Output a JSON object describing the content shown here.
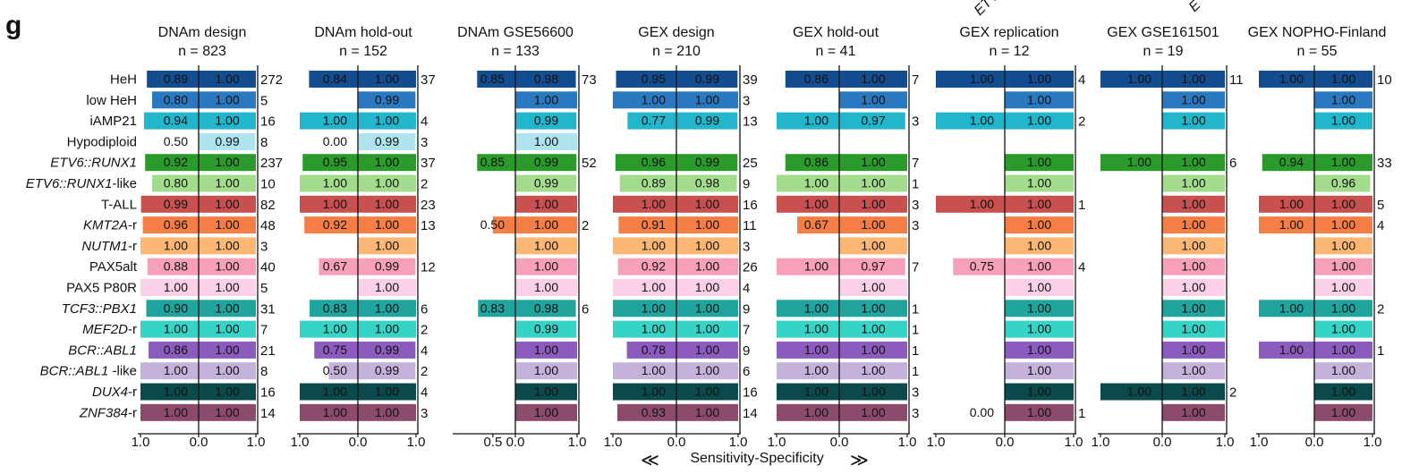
{
  "figure": {
    "panel_label": "g",
    "xlabel": "Sensitivity-Specificity",
    "arrow_left": "≪",
    "arrow_right": "≫",
    "corner_fragment_1": "ETV",
    "corner_fragment_2": "E"
  },
  "chart_data": {
    "type": "bar",
    "description_units": "left bar = sensitivity, right bar = specificity, count = number of samples",
    "categories": [
      "HeH",
      "low HeH",
      "iAMP21",
      "Hypodiploid",
      "ETV6::RUNX1",
      "ETV6::RUNX1-like",
      "T-ALL",
      "KMT2A-r",
      "NUTM1-r",
      "PAX5alt",
      "PAX5 P80R",
      "TCF3::PBX1",
      "MEF2D-r",
      "BCR::ABL1",
      "BCR::ABL1 -like",
      "DUX4-r",
      "ZNF384-r"
    ],
    "category_italic": [
      false,
      false,
      false,
      false,
      true,
      true,
      false,
      true,
      true,
      false,
      false,
      true,
      true,
      true,
      true,
      true,
      true
    ],
    "category_suffix": [
      "",
      "",
      "",
      "",
      "",
      "-like",
      "",
      "-r",
      "-r",
      "",
      "",
      "",
      "-r",
      "",
      " -like",
      "-r",
      "-r"
    ],
    "category_main": [
      "HeH",
      "low HeH",
      "iAMP21",
      "Hypodiploid",
      "ETV6::RUNX1",
      "ETV6::RUNX1",
      "T-ALL",
      "KMT2A",
      "NUTM1",
      "PAX5alt",
      "PAX5 P80R",
      "TCF3::PBX1",
      "MEF2D",
      "BCR::ABL1",
      "BCR::ABL1",
      "DUX4",
      "ZNF384"
    ],
    "colors_sens": [
      "#134c8f",
      "#2a79c0",
      "#22b6cd",
      "#ffffff",
      "#2a9a2b",
      "#a3dc8c",
      "#c8514f",
      "#f47e45",
      "#fcb774",
      "#f7a0b9",
      "#fcd1e7",
      "#20a59e",
      "#36d4c7",
      "#8c5bbe",
      "#c5b2db",
      "#0b4a4c",
      "#8c4a6c"
    ],
    "colors_spec": [
      "#134c8f",
      "#2a79c0",
      "#22b6cd",
      "#ade4ee",
      "#2a9a2b",
      "#a3dc8c",
      "#c8514f",
      "#f47e45",
      "#fcb774",
      "#f7a0b9",
      "#fcd1e7",
      "#20a59e",
      "#36d4c7",
      "#8c5bbe",
      "#c5b2db",
      "#0b4a4c",
      "#8c4a6c"
    ],
    "panels": [
      {
        "title": "DNAm design",
        "n_label": "n = 823",
        "axis": {
          "left": 1.0,
          "right": 1.0
        },
        "ticks": [
          "1.0",
          "0.0",
          "1.0"
        ],
        "sensitivity": [
          0.89,
          0.8,
          0.94,
          0.5,
          0.92,
          0.8,
          0.99,
          0.96,
          1.0,
          0.88,
          1.0,
          0.9,
          1.0,
          0.86,
          1.0,
          1.0,
          1.0
        ],
        "specificity": [
          1.0,
          1.0,
          1.0,
          0.99,
          1.0,
          1.0,
          1.0,
          1.0,
          1.0,
          1.0,
          1.0,
          1.0,
          1.0,
          1.0,
          1.0,
          1.0,
          1.0
        ],
        "counts": [
          "272",
          "5",
          "16",
          "8",
          "237",
          "10",
          "82",
          "48",
          "3",
          "40",
          "5",
          "31",
          "7",
          "21",
          "8",
          "16",
          "14"
        ]
      },
      {
        "title": "DNAm hold-out",
        "n_label": "n = 152",
        "axis": {
          "left": 1.0,
          "right": 1.0
        },
        "ticks": [
          "1.0",
          "0.0",
          "1.0"
        ],
        "sensitivity": [
          0.84,
          null,
          1.0,
          0.0,
          0.95,
          1.0,
          1.0,
          0.92,
          null,
          0.67,
          null,
          0.83,
          1.0,
          0.75,
          0.5,
          1.0,
          1.0
        ],
        "specificity": [
          1.0,
          0.99,
          1.0,
          0.99,
          1.0,
          1.0,
          1.0,
          1.0,
          1.0,
          0.99,
          1.0,
          1.0,
          1.0,
          0.99,
          0.99,
          1.0,
          1.0
        ],
        "counts": [
          "37",
          "",
          "4",
          "3",
          "37",
          "2",
          "23",
          "13",
          "",
          "12",
          "",
          "6",
          "2",
          "4",
          "2",
          "4",
          "3"
        ]
      },
      {
        "title": "DNAm GSE56600",
        "n_label": "n = 133",
        "axis": {
          "left": 1.0,
          "right": 1.0
        },
        "ticks": [
          "0.5",
          "0.0",
          "1.0"
        ],
        "sensitivity": [
          0.85,
          null,
          null,
          null,
          0.85,
          null,
          null,
          0.5,
          null,
          null,
          null,
          0.83,
          null,
          null,
          null,
          null,
          null
        ],
        "specificity": [
          0.98,
          1.0,
          0.99,
          1.0,
          0.99,
          0.99,
          1.0,
          1.0,
          1.0,
          1.0,
          1.0,
          0.98,
          0.99,
          1.0,
          1.0,
          1.0,
          1.0
        ],
        "counts": [
          "73",
          "",
          "",
          "",
          "52",
          "",
          "",
          "2",
          "",
          "",
          "",
          "6",
          "",
          "",
          "",
          "",
          ""
        ]
      },
      {
        "title": "GEX design",
        "n_label": "n = 210",
        "axis": {
          "left": 1.0,
          "right": 1.0
        },
        "ticks": [
          "1.0",
          "0.0",
          "1.0"
        ],
        "sensitivity": [
          0.95,
          1.0,
          0.77,
          null,
          0.96,
          0.89,
          1.0,
          0.91,
          1.0,
          0.92,
          1.0,
          1.0,
          1.0,
          0.78,
          1.0,
          1.0,
          0.93
        ],
        "specificity": [
          0.99,
          1.0,
          0.99,
          null,
          0.99,
          0.98,
          1.0,
          1.0,
          1.0,
          1.0,
          1.0,
          1.0,
          1.0,
          1.0,
          1.0,
          1.0,
          1.0
        ],
        "counts": [
          "39",
          "3",
          "13",
          "",
          "25",
          "9",
          "16",
          "11",
          "3",
          "26",
          "4",
          "9",
          "7",
          "9",
          "6",
          "16",
          "14"
        ]
      },
      {
        "title": "GEX hold-out",
        "n_label": "n = 41",
        "axis": {
          "left": 1.0,
          "right": 1.0
        },
        "ticks": [
          "1.0",
          "0.0",
          "1.0"
        ],
        "sensitivity": [
          0.86,
          null,
          1.0,
          null,
          0.86,
          1.0,
          1.0,
          0.67,
          null,
          1.0,
          null,
          1.0,
          1.0,
          1.0,
          1.0,
          1.0,
          1.0
        ],
        "specificity": [
          1.0,
          1.0,
          0.97,
          null,
          1.0,
          1.0,
          1.0,
          1.0,
          1.0,
          0.97,
          1.0,
          1.0,
          1.0,
          1.0,
          1.0,
          1.0,
          1.0
        ],
        "counts": [
          "7",
          "",
          "3",
          "",
          "7",
          "1",
          "3",
          "3",
          "",
          "7",
          "",
          "1",
          "1",
          "1",
          "1",
          "3",
          "3"
        ]
      },
      {
        "title": "GEX replication",
        "n_label": "n = 12",
        "axis": {
          "left": 1.0,
          "right": 1.0
        },
        "ticks": [
          "1.0",
          "0.0",
          "1.0"
        ],
        "sensitivity": [
          1.0,
          null,
          1.0,
          null,
          null,
          null,
          1.0,
          null,
          null,
          0.75,
          null,
          null,
          null,
          null,
          null,
          null,
          0.0
        ],
        "specificity": [
          1.0,
          1.0,
          1.0,
          null,
          1.0,
          1.0,
          1.0,
          1.0,
          1.0,
          1.0,
          1.0,
          1.0,
          1.0,
          1.0,
          1.0,
          1.0,
          1.0
        ],
        "counts": [
          "4",
          "",
          "2",
          "",
          "",
          "",
          "1",
          "",
          "",
          "4",
          "",
          "",
          "",
          "",
          "",
          "",
          "1"
        ]
      },
      {
        "title": "GEX  GSE161501",
        "n_label": "n = 19",
        "axis": {
          "left": 1.0,
          "right": 1.0
        },
        "ticks": [
          "1.0",
          "0.0",
          "1.0"
        ],
        "sensitivity": [
          1.0,
          null,
          null,
          null,
          1.0,
          null,
          null,
          null,
          null,
          null,
          null,
          null,
          null,
          null,
          null,
          1.0,
          null
        ],
        "specificity": [
          1.0,
          1.0,
          1.0,
          null,
          1.0,
          1.0,
          1.0,
          1.0,
          1.0,
          1.0,
          1.0,
          1.0,
          1.0,
          1.0,
          1.0,
          1.0,
          1.0
        ],
        "counts": [
          "11",
          "",
          "",
          "",
          "6",
          "",
          "",
          "",
          "",
          "",
          "",
          "",
          "",
          "",
          "",
          "2",
          ""
        ]
      },
      {
        "title": "GEX NOPHO-Finland",
        "n_label": "n = 55",
        "axis": {
          "left": 1.0,
          "right": 1.0
        },
        "ticks": [
          "1.0",
          "0.0",
          "1.0"
        ],
        "sensitivity": [
          1.0,
          null,
          null,
          null,
          0.94,
          null,
          1.0,
          1.0,
          null,
          null,
          null,
          1.0,
          null,
          1.0,
          null,
          null,
          null
        ],
        "specificity": [
          1.0,
          1.0,
          1.0,
          null,
          1.0,
          0.96,
          1.0,
          1.0,
          1.0,
          1.0,
          1.0,
          1.0,
          1.0,
          1.0,
          1.0,
          1.0,
          1.0
        ],
        "counts": [
          "10",
          "",
          "",
          "",
          "33",
          "",
          "5",
          "4",
          "",
          "",
          "",
          "2",
          "",
          "1",
          "",
          "",
          ""
        ]
      }
    ]
  }
}
